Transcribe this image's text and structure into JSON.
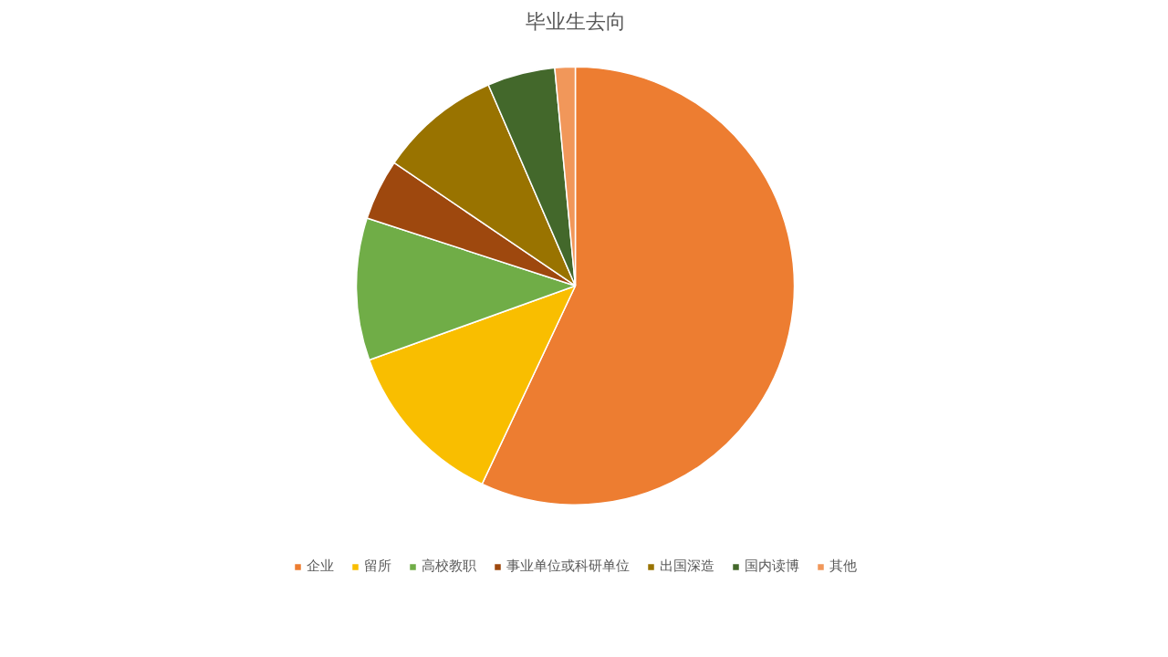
{
  "chart_data": {
    "type": "pie",
    "title": "毕业生去向",
    "categories": [
      "企业",
      "留所",
      "高校教职",
      "事业单位或科研单位",
      "出国深造",
      "国内读博",
      "其他"
    ],
    "values": [
      57,
      12.5,
      10.5,
      4.5,
      9,
      5,
      1.5
    ],
    "colors": [
      "#ed7d31",
      "#f9be00",
      "#70ad47",
      "#9e480e",
      "#997300",
      "#43682b",
      "#f1975a"
    ],
    "legend": "bottom"
  }
}
